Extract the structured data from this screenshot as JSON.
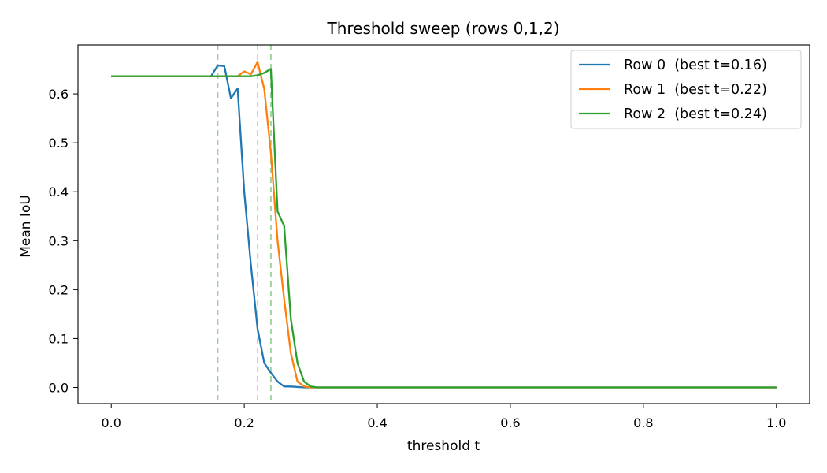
{
  "chart_data": {
    "type": "line",
    "title": "Threshold sweep (rows 0,1,2)",
    "xlabel": "threshold t",
    "ylabel": "Mean IoU",
    "xlim": [
      -0.05,
      1.05
    ],
    "ylim": [
      -0.033,
      0.7
    ],
    "xticks": [
      0.0,
      0.2,
      0.4,
      0.6,
      0.8,
      1.0
    ],
    "xtick_labels": [
      "0.0",
      "0.2",
      "0.4",
      "0.6",
      "0.8",
      "1.0"
    ],
    "yticks": [
      0.0,
      0.1,
      0.2,
      0.3,
      0.4,
      0.5,
      0.6
    ],
    "ytick_labels": [
      "0.0",
      "0.1",
      "0.2",
      "0.3",
      "0.4",
      "0.5",
      "0.6"
    ],
    "grid": false,
    "legend_position": "top-right",
    "series": [
      {
        "name": "Row 0  (best t=0.16)",
        "color": "#1f77b4",
        "best_t": 0.16,
        "points": [
          [
            0.0,
            0.636
          ],
          [
            0.15,
            0.636
          ],
          [
            0.16,
            0.658
          ],
          [
            0.17,
            0.657
          ],
          [
            0.18,
            0.591
          ],
          [
            0.19,
            0.611
          ],
          [
            0.2,
            0.4
          ],
          [
            0.21,
            0.25
          ],
          [
            0.22,
            0.12
          ],
          [
            0.23,
            0.05
          ],
          [
            0.24,
            0.03
          ],
          [
            0.25,
            0.012
          ],
          [
            0.26,
            0.002
          ],
          [
            0.27,
            0.002
          ],
          [
            0.28,
            0.001
          ],
          [
            0.29,
            0.0
          ],
          [
            1.0,
            0.0
          ]
        ]
      },
      {
        "name": "Row 1  (best t=0.22)",
        "color": "#ff7f0e",
        "best_t": 0.22,
        "points": [
          [
            0.0,
            0.636
          ],
          [
            0.19,
            0.636
          ],
          [
            0.2,
            0.646
          ],
          [
            0.21,
            0.64
          ],
          [
            0.22,
            0.665
          ],
          [
            0.23,
            0.61
          ],
          [
            0.24,
            0.48
          ],
          [
            0.25,
            0.3
          ],
          [
            0.26,
            0.18
          ],
          [
            0.27,
            0.07
          ],
          [
            0.28,
            0.012
          ],
          [
            0.29,
            0.002
          ],
          [
            0.3,
            0.0
          ],
          [
            1.0,
            0.0
          ]
        ]
      },
      {
        "name": "Row 2  (best t=0.24)",
        "color": "#2ca02c",
        "best_t": 0.24,
        "points": [
          [
            0.0,
            0.636
          ],
          [
            0.21,
            0.636
          ],
          [
            0.22,
            0.638
          ],
          [
            0.23,
            0.643
          ],
          [
            0.24,
            0.651
          ],
          [
            0.25,
            0.36
          ],
          [
            0.26,
            0.33
          ],
          [
            0.27,
            0.14
          ],
          [
            0.28,
            0.05
          ],
          [
            0.29,
            0.012
          ],
          [
            0.3,
            0.002
          ],
          [
            0.31,
            0.0
          ],
          [
            1.0,
            0.0
          ]
        ]
      }
    ]
  }
}
